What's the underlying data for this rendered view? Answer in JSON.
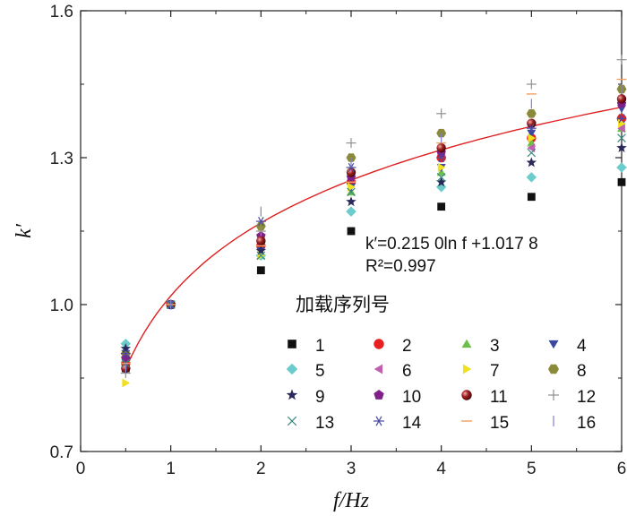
{
  "chart_data": {
    "type": "scatter",
    "title": "",
    "xlabel": "f/Hz",
    "ylabel": "k′",
    "xlim": [
      0,
      6
    ],
    "ylim": [
      0.7,
      1.6
    ],
    "xticks": [
      0,
      1,
      2,
      3,
      4,
      5,
      6
    ],
    "yticks": [
      0.7,
      1.0,
      1.3,
      1.6
    ],
    "x_tick_labels": [
      "0",
      "1",
      "2",
      "3",
      "4",
      "5",
      "6"
    ],
    "y_tick_labels": [
      "0.7",
      "1.0",
      "1.3",
      "1.6"
    ],
    "grid": false,
    "legend_title": "加载序列号",
    "legend_placement": "bottom-right",
    "fit": {
      "equation": "k′=0.215 0ln f +1.017 8",
      "r2_label": "R²=0.997",
      "a": 0.215,
      "b": 1.0178,
      "x_range": [
        0.5,
        6
      ],
      "color": "#e02020"
    },
    "x": [
      0.5,
      1,
      2,
      3,
      4,
      5,
      6
    ],
    "series": [
      {
        "name": "1",
        "marker": "square",
        "color": "#111111",
        "values": [
          0.87,
          1.0,
          1.07,
          1.15,
          1.2,
          1.22,
          1.25
        ]
      },
      {
        "name": "2",
        "marker": "circle",
        "color": "#e82020",
        "values": [
          0.88,
          1.0,
          1.12,
          1.25,
          1.3,
          1.34,
          1.38
        ]
      },
      {
        "name": "3",
        "marker": "triangle-up",
        "color": "#6cc04a",
        "values": [
          0.89,
          1.0,
          1.1,
          1.23,
          1.27,
          1.33,
          1.36
        ]
      },
      {
        "name": "4",
        "marker": "triangle-down",
        "color": "#3a4aa0",
        "values": [
          0.9,
          1.0,
          1.11,
          1.24,
          1.28,
          1.35,
          1.4
        ]
      },
      {
        "name": "5",
        "marker": "diamond",
        "color": "#6ccbcb",
        "values": [
          0.92,
          1.0,
          1.1,
          1.19,
          1.24,
          1.26,
          1.28
        ]
      },
      {
        "name": "6",
        "marker": "triangle-left",
        "color": "#c060b0",
        "values": [
          0.89,
          1.0,
          1.13,
          1.26,
          1.31,
          1.32,
          1.36
        ]
      },
      {
        "name": "7",
        "marker": "triangle-right",
        "color": "#f0e020",
        "values": [
          0.84,
          1.0,
          1.1,
          1.24,
          1.28,
          1.34,
          1.37
        ]
      },
      {
        "name": "8",
        "marker": "hexagon",
        "color": "#8a8a3a",
        "values": [
          0.9,
          1.0,
          1.16,
          1.3,
          1.35,
          1.39,
          1.44
        ]
      },
      {
        "name": "9",
        "marker": "star",
        "color": "#2a2a5a",
        "values": [
          0.91,
          1.0,
          1.11,
          1.21,
          1.25,
          1.29,
          1.32
        ]
      },
      {
        "name": "10",
        "marker": "pentagon",
        "color": "#80208a",
        "values": [
          0.89,
          1.0,
          1.14,
          1.26,
          1.31,
          1.37,
          1.41
        ]
      },
      {
        "name": "11",
        "marker": "sphere",
        "color": "#8a1818",
        "values": [
          0.87,
          1.0,
          1.13,
          1.27,
          1.32,
          1.37,
          1.42
        ]
      },
      {
        "name": "12",
        "marker": "plus",
        "color": "#909090",
        "values": [
          0.86,
          1.0,
          1.15,
          1.33,
          1.39,
          1.45,
          1.5
        ]
      },
      {
        "name": "13",
        "marker": "x",
        "color": "#3a8a80",
        "values": [
          0.88,
          1.0,
          1.1,
          1.23,
          1.26,
          1.31,
          1.34
        ]
      },
      {
        "name": "14",
        "marker": "asterisk",
        "color": "#4a4aa0",
        "values": [
          0.9,
          1.0,
          1.17,
          1.28,
          1.3,
          1.36,
          1.38
        ]
      },
      {
        "name": "15",
        "marker": "dash",
        "color": "#f0a060",
        "values": [
          0.88,
          1.0,
          1.12,
          1.25,
          1.33,
          1.43,
          1.46
        ]
      },
      {
        "name": "16",
        "marker": "vline",
        "color": "#8080d0",
        "values": [
          0.87,
          1.0,
          1.19,
          1.29,
          1.34,
          1.41,
          1.44
        ]
      }
    ]
  }
}
